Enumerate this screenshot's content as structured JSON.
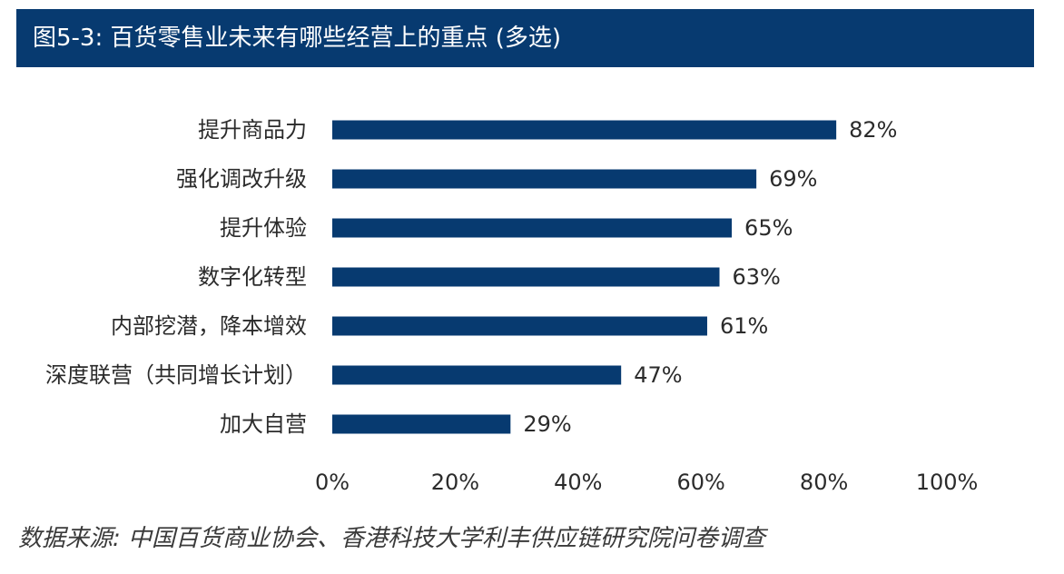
{
  "title": "图5-3: 百货零售业未来有哪些经营上的重点 (多选)",
  "source": "数据来源: 中国百货商业协会、香港科技大学利丰供应链研究院问卷调查",
  "colors": {
    "bar": "#073a70",
    "title_bg": "#073a70",
    "title_text": "#ffffff",
    "text": "#2b2b2b"
  },
  "chart_data": {
    "type": "bar",
    "orientation": "horizontal",
    "categories": [
      "提升商品力",
      "强化调改升级",
      "提升体验",
      "数字化转型",
      "内部挖潜，降本增效",
      "深度联营（共同增长计划）",
      "加大自营"
    ],
    "values": [
      82,
      69,
      65,
      63,
      61,
      47,
      29
    ],
    "value_labels": [
      "82%",
      "69%",
      "65%",
      "63%",
      "61%",
      "47%",
      "29%"
    ],
    "xlim": [
      0,
      100
    ],
    "xticks": [
      0,
      20,
      40,
      60,
      80,
      100
    ],
    "xtick_labels": [
      "0%",
      "20%",
      "40%",
      "60%",
      "80%",
      "100%"
    ],
    "grid": false,
    "legend": "none"
  }
}
